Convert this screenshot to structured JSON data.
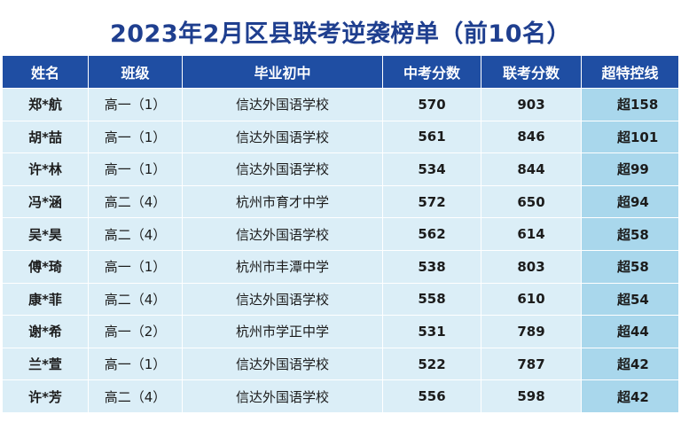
{
  "title": "2023年2月区县联考逆袭榜单（前10名）",
  "headers": [
    "姓名",
    "班级",
    "毕业初中",
    "中考分数",
    "联考分数",
    "超特控线"
  ],
  "rows": [
    [
      "郑*航",
      "高一（1）",
      "信达外国语学校",
      "570",
      "903",
      "超158"
    ],
    [
      "胡*喆",
      "高一（1）",
      "信达外国语学校",
      "561",
      "846",
      "超101"
    ],
    [
      "许*林",
      "高一（1）",
      "信达外国语学校",
      "534",
      "844",
      "超99"
    ],
    [
      "冯*涵",
      "高二（4）",
      "杭州市育才中学",
      "572",
      "650",
      "超94"
    ],
    [
      "吴*昊",
      "高二（4）",
      "信达外国语学校",
      "562",
      "614",
      "超58"
    ],
    [
      "傅*琦",
      "高一（1）",
      "杭州市丰潭中学",
      "538",
      "803",
      "超58"
    ],
    [
      "康*菲",
      "高二（4）",
      "信达外国语学校",
      "558",
      "610",
      "超54"
    ],
    [
      "谢*希",
      "高一（2）",
      "杭州市学正中学",
      "531",
      "789",
      "超44"
    ],
    [
      "兰*萱",
      "高一（1）",
      "信达外国语学校",
      "522",
      "787",
      "超42"
    ],
    [
      "许*芳",
      "高二（4）",
      "信达外国语学校",
      "556",
      "598",
      "超42"
    ]
  ],
  "colors": {
    "title": "#1f3f8f",
    "header_bg": "#1f4ea3",
    "cell_bg": "#dbeef7",
    "highlight_bg": "#a9d7ec"
  }
}
